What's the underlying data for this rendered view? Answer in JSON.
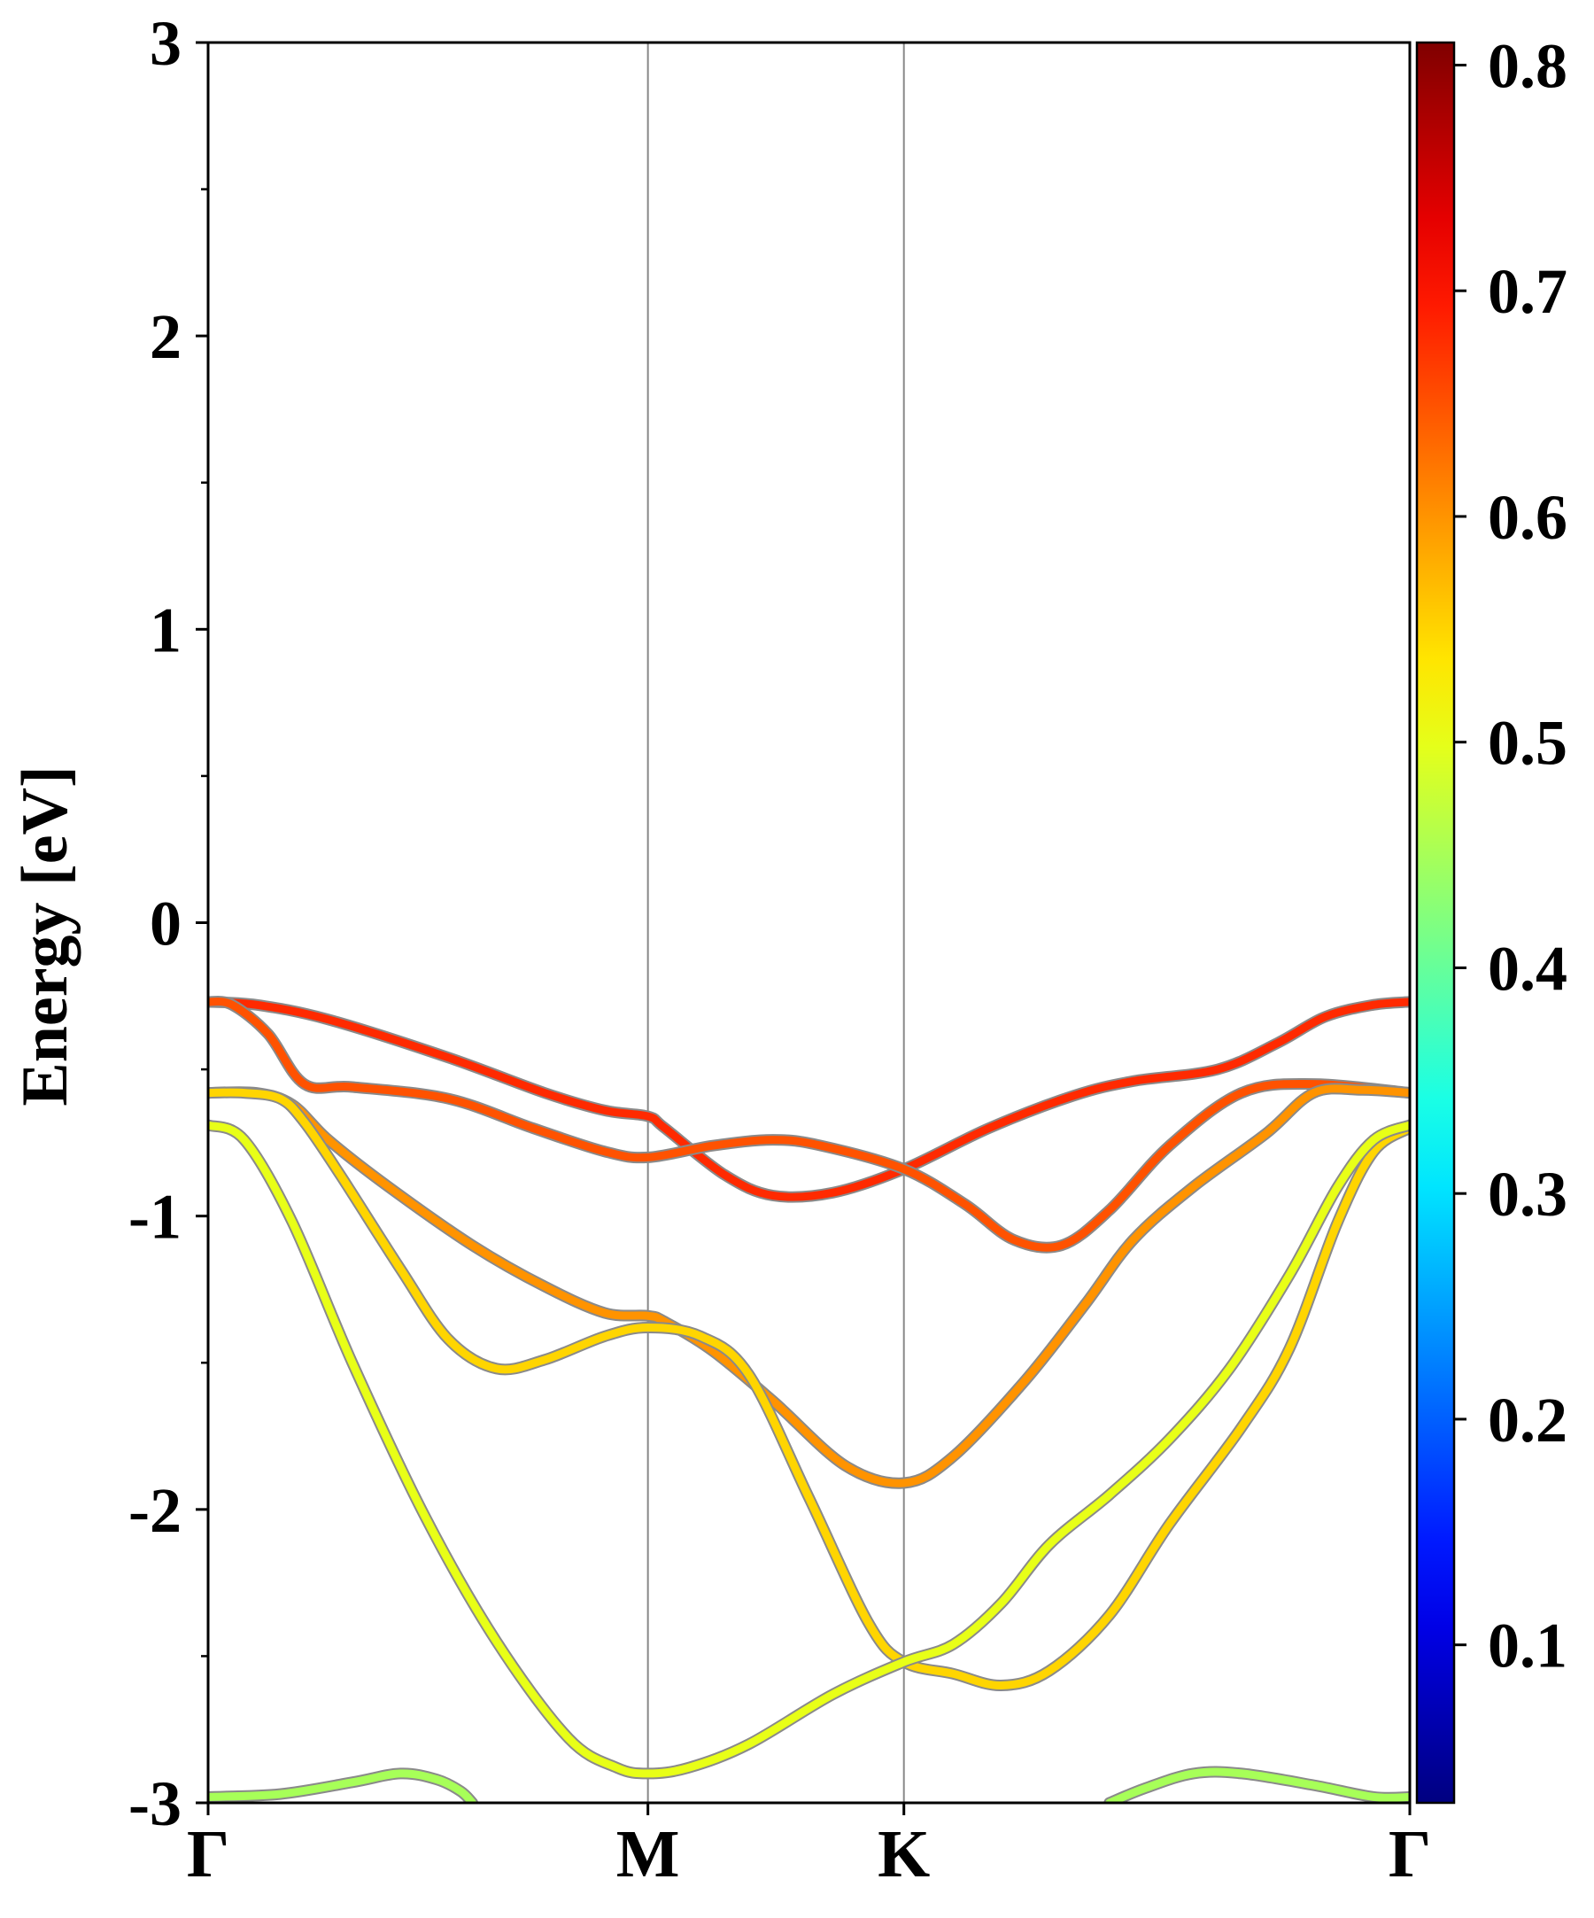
{
  "chart_data": {
    "type": "line",
    "ylabel": "Energy [eV]",
    "xlabel": "",
    "ylim": [
      -3,
      3
    ],
    "y_ticks": [
      "3",
      "2",
      "1",
      "0",
      "-1",
      "-2",
      "-3"
    ],
    "y_tick_values": [
      3,
      2,
      1,
      0,
      -1,
      -2,
      -3
    ],
    "y_minor_ticks": [
      2.5,
      1.5,
      0.5,
      -0.5,
      -1.5,
      -2.5
    ],
    "kpath_labels": [
      "Γ",
      "M",
      "K",
      "Γ"
    ],
    "kpath_positions": [
      0,
      0.366,
      0.579,
      1.0
    ],
    "grid": "vertical lines at high-symmetry points",
    "colorbar": {
      "colormap": "jet",
      "range": [
        0.03,
        0.81
      ],
      "ticks": [
        "0.1",
        "0.2",
        "0.3",
        "0.4",
        "0.5",
        "0.6",
        "0.7",
        "0.8"
      ],
      "tick_values": [
        0.1,
        0.2,
        0.3,
        0.4,
        0.5,
        0.6,
        0.7,
        0.8
      ]
    },
    "series": [
      {
        "points": [
          [
            0,
            -0.27
          ],
          [
            0.04,
            -0.28
          ],
          [
            0.1,
            -0.33
          ],
          [
            0.2,
            -0.46
          ],
          [
            0.28,
            -0.58
          ],
          [
            0.33,
            -0.64
          ],
          [
            0.366,
            -0.66
          ],
          [
            0.38,
            -0.7
          ],
          [
            0.43,
            -0.86
          ],
          [
            0.47,
            -0.93
          ],
          [
            0.52,
            -0.92
          ],
          [
            0.579,
            -0.84
          ],
          [
            0.65,
            -0.7
          ],
          [
            0.72,
            -0.59
          ],
          [
            0.77,
            -0.54
          ],
          [
            0.84,
            -0.5
          ],
          [
            0.89,
            -0.41
          ],
          [
            0.93,
            -0.32
          ],
          [
            0.97,
            -0.28
          ],
          [
            1,
            -0.27
          ]
        ],
        "weight": 0.68
      },
      {
        "points": [
          [
            0,
            -0.27
          ],
          [
            0.02,
            -0.28
          ],
          [
            0.05,
            -0.38
          ],
          [
            0.08,
            -0.55
          ],
          [
            0.12,
            -0.56
          ],
          [
            0.2,
            -0.6
          ],
          [
            0.27,
            -0.7
          ],
          [
            0.33,
            -0.78
          ],
          [
            0.366,
            -0.8
          ],
          [
            0.42,
            -0.76
          ],
          [
            0.47,
            -0.74
          ],
          [
            0.51,
            -0.76
          ],
          [
            0.579,
            -0.84
          ],
          [
            0.63,
            -0.96
          ],
          [
            0.67,
            -1.08
          ],
          [
            0.71,
            -1.1
          ],
          [
            0.75,
            -0.98
          ],
          [
            0.8,
            -0.76
          ],
          [
            0.86,
            -0.58
          ],
          [
            0.92,
            -0.55
          ],
          [
            1,
            -0.58
          ]
        ],
        "weight": 0.65
      },
      {
        "points": [
          [
            0,
            -0.58
          ],
          [
            0.04,
            -0.58
          ],
          [
            0.07,
            -0.62
          ],
          [
            0.1,
            -0.74
          ],
          [
            0.15,
            -0.9
          ],
          [
            0.22,
            -1.1
          ],
          [
            0.28,
            -1.24
          ],
          [
            0.33,
            -1.33
          ],
          [
            0.366,
            -1.34
          ],
          [
            0.38,
            -1.36
          ],
          [
            0.42,
            -1.46
          ],
          [
            0.47,
            -1.63
          ],
          [
            0.53,
            -1.85
          ],
          [
            0.579,
            -1.91
          ],
          [
            0.62,
            -1.82
          ],
          [
            0.68,
            -1.56
          ],
          [
            0.73,
            -1.3
          ],
          [
            0.77,
            -1.08
          ],
          [
            0.82,
            -0.9
          ],
          [
            0.88,
            -0.72
          ],
          [
            0.92,
            -0.58
          ],
          [
            0.96,
            -0.57
          ],
          [
            1,
            -0.58
          ]
        ],
        "weight": 0.6
      },
      {
        "points": [
          [
            0,
            -0.58
          ],
          [
            0.03,
            -0.58
          ],
          [
            0.06,
            -0.6
          ],
          [
            0.08,
            -0.68
          ],
          [
            0.11,
            -0.86
          ],
          [
            0.16,
            -1.18
          ],
          [
            0.2,
            -1.42
          ],
          [
            0.24,
            -1.52
          ],
          [
            0.28,
            -1.49
          ],
          [
            0.33,
            -1.41
          ],
          [
            0.366,
            -1.38
          ],
          [
            0.41,
            -1.41
          ],
          [
            0.45,
            -1.54
          ],
          [
            0.5,
            -1.96
          ],
          [
            0.55,
            -2.39
          ],
          [
            0.579,
            -2.52
          ],
          [
            0.62,
            -2.56
          ],
          [
            0.66,
            -2.6
          ],
          [
            0.7,
            -2.55
          ],
          [
            0.75,
            -2.36
          ],
          [
            0.8,
            -2.05
          ],
          [
            0.86,
            -1.72
          ],
          [
            0.9,
            -1.45
          ],
          [
            0.94,
            -1.02
          ],
          [
            0.97,
            -0.78
          ],
          [
            1,
            -0.7
          ]
        ],
        "weight": 0.55
      },
      {
        "points": [
          [
            0,
            -0.69
          ],
          [
            0.03,
            -0.74
          ],
          [
            0.07,
            -1.02
          ],
          [
            0.12,
            -1.5
          ],
          [
            0.18,
            -2.02
          ],
          [
            0.24,
            -2.45
          ],
          [
            0.3,
            -2.78
          ],
          [
            0.34,
            -2.88
          ],
          [
            0.366,
            -2.9
          ],
          [
            0.4,
            -2.88
          ],
          [
            0.45,
            -2.8
          ],
          [
            0.52,
            -2.63
          ],
          [
            0.579,
            -2.52
          ],
          [
            0.62,
            -2.46
          ],
          [
            0.66,
            -2.32
          ],
          [
            0.7,
            -2.12
          ],
          [
            0.75,
            -1.95
          ],
          [
            0.8,
            -1.76
          ],
          [
            0.85,
            -1.52
          ],
          [
            0.9,
            -1.2
          ],
          [
            0.94,
            -0.9
          ],
          [
            0.97,
            -0.74
          ],
          [
            1,
            -0.69
          ]
        ],
        "weight": 0.5
      },
      {
        "points": [
          [
            0,
            -2.98
          ],
          [
            0.06,
            -2.97
          ],
          [
            0.12,
            -2.93
          ],
          [
            0.16,
            -2.9
          ],
          [
            0.19,
            -2.92
          ],
          [
            0.21,
            -2.96
          ],
          [
            0.22,
            -3.0
          ]
        ],
        "weight": 0.45
      },
      {
        "points": [
          [
            0.75,
            -3.0
          ],
          [
            0.78,
            -2.95
          ],
          [
            0.82,
            -2.9
          ],
          [
            0.86,
            -2.9
          ],
          [
            0.92,
            -2.94
          ],
          [
            0.97,
            -2.98
          ],
          [
            1,
            -2.98
          ]
        ],
        "weight": 0.45
      }
    ]
  }
}
